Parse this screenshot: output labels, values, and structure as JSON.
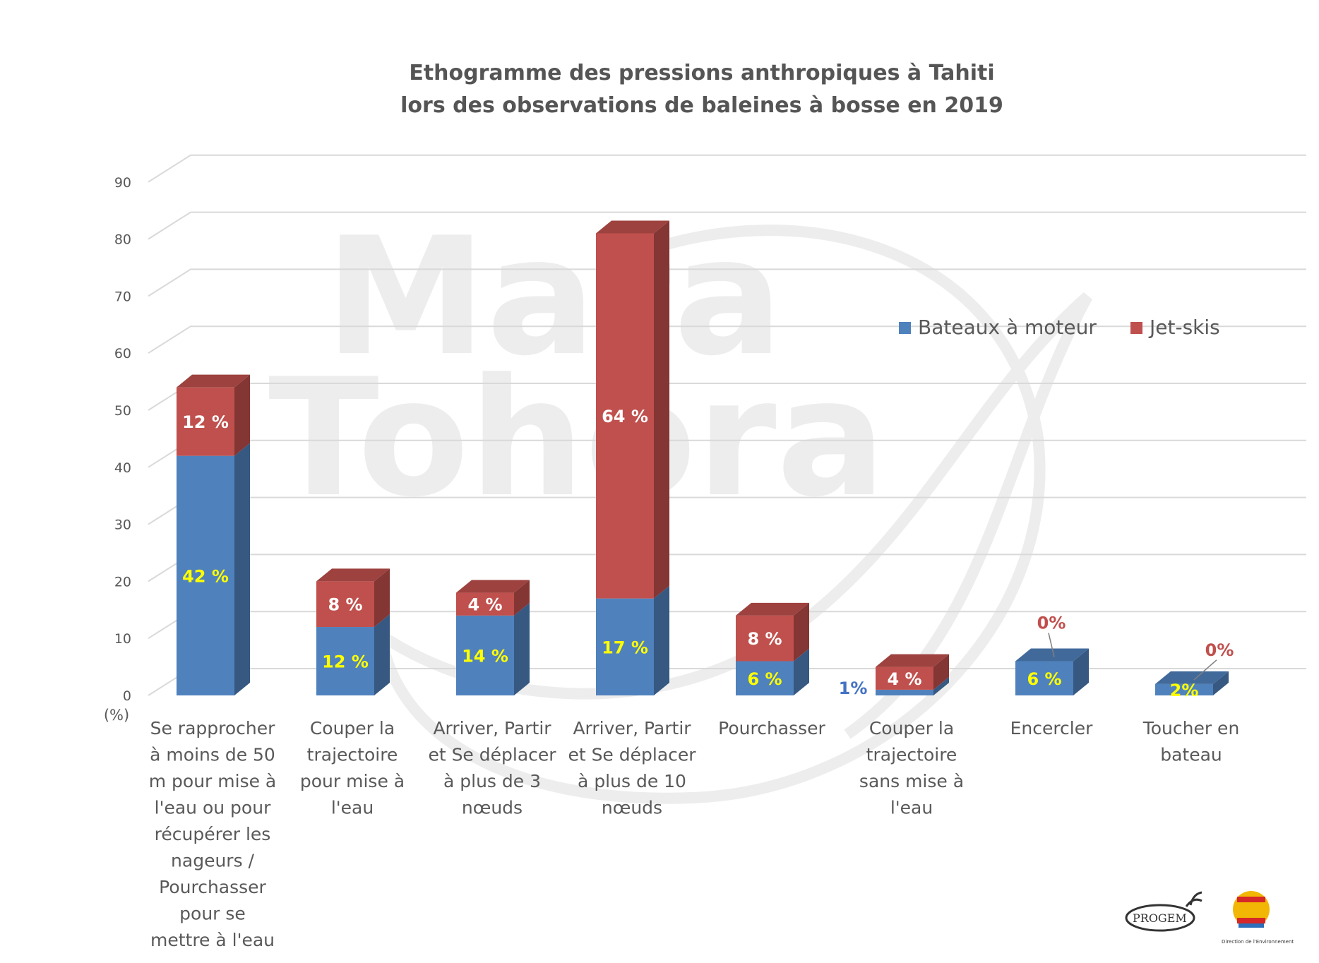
{
  "chart_data": {
    "type": "bar",
    "stacked": true,
    "three_d": true,
    "title": "Ethogramme des pressions anthropiques à Tahiti\nlors des observations de baleines à bosse en 2019",
    "ylabel": "(%)",
    "ylim": [
      0,
      90
    ],
    "yticks": [
      "0",
      "10",
      "20",
      "30",
      "40",
      "50",
      "60",
      "70",
      "80",
      "90"
    ],
    "grid": true,
    "legend_position": "right",
    "categories": [
      "Se rapprocher à moins de 50 m pour mise à l'eau ou pour récupérer les nageurs / Pourchasser pour se mettre à l'eau",
      "Couper la trajectoire pour mise à l'eau",
      "Arriver, Partir et Se déplacer à plus de 3 nœuds",
      "Arriver, Partir et Se déplacer à plus de 10 nœuds",
      "Pourchasser",
      "Couper la trajectoire sans mise à l'eau",
      "Encercler",
      "Toucher en bateau"
    ],
    "category_lines": [
      [
        "Se rapprocher",
        "à moins de 50",
        "m pour mise à",
        "l'eau ou pour",
        "récupérer les",
        "nageurs /",
        "Pourchasser",
        "pour se",
        "mettre à l'eau"
      ],
      [
        "Couper la",
        "trajectoire",
        "pour mise à",
        "l'eau"
      ],
      [
        "Arriver, Partir",
        "et Se déplacer",
        "à plus de 3",
        "nœuds"
      ],
      [
        "Arriver, Partir",
        "et Se déplacer",
        "à plus de 10",
        "nœuds"
      ],
      [
        "Pourchasser"
      ],
      [
        "Couper la",
        "trajectoire",
        "sans mise à",
        "l'eau"
      ],
      [
        "Encercler"
      ],
      [
        "Toucher en",
        "bateau"
      ]
    ],
    "series": [
      {
        "name": "Bateaux à moteur",
        "color": "#4f81bd",
        "values": [
          42,
          12,
          14,
          17,
          6,
          1,
          6,
          2
        ],
        "labels": [
          "42 %",
          "12 %",
          "14 %",
          "17 %",
          "6 %",
          "1%",
          "6 %",
          "2%"
        ]
      },
      {
        "name": "Jet-skis",
        "color": "#c0504d",
        "values": [
          12,
          8,
          4,
          64,
          8,
          4,
          0,
          0
        ],
        "labels": [
          "12 %",
          "8 %",
          "4 %",
          "64 %",
          "8 %",
          "4 %",
          "0%",
          "0%"
        ]
      }
    ],
    "label_color_inside_blue": "#ffff00",
    "label_color_inside_red": "#ffffff"
  },
  "watermark": {
    "line1": "Mata",
    "line2": "Tohora"
  },
  "logos": {
    "progem": "PROGEM",
    "direction": "Direction de l'Environnement"
  }
}
